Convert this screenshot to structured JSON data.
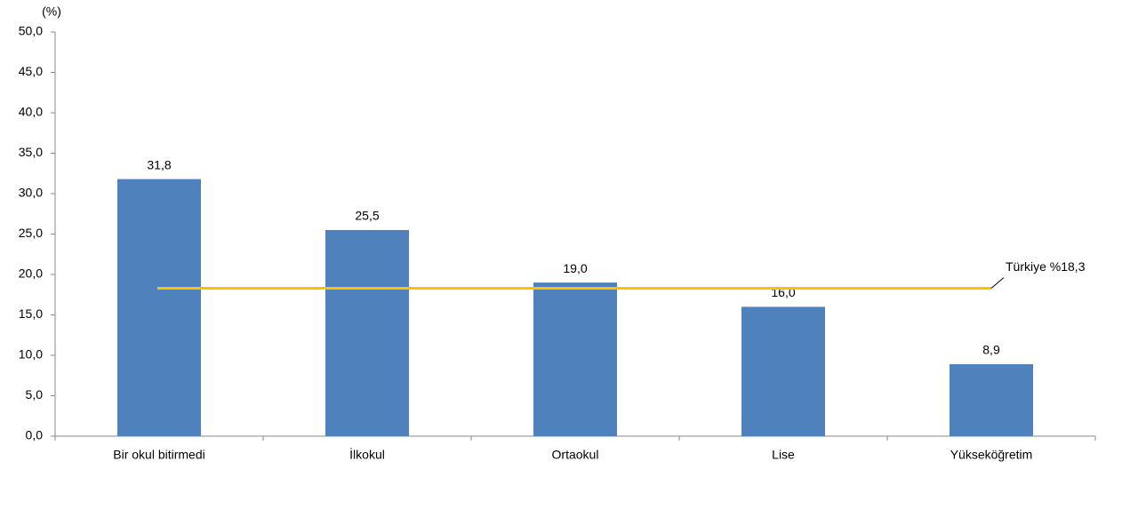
{
  "chart_data": {
    "type": "bar",
    "y_unit_label": "(%)",
    "categories": [
      "Bir okul bitirmedi",
      "İlkokul",
      "Ortaokul",
      "Lise",
      "Yükseköğretim"
    ],
    "values": [
      31.8,
      25.5,
      19.0,
      16.0,
      8.9
    ],
    "value_labels": [
      "31,8",
      "25,5",
      "19,0",
      "16,0",
      "8,9"
    ],
    "color": "#4f81bd",
    "ylim": [
      0,
      50
    ],
    "yticks": [
      {
        "value": 0,
        "label": "0,0"
      },
      {
        "value": 5,
        "label": "5,0"
      },
      {
        "value": 10,
        "label": "10,0"
      },
      {
        "value": 15,
        "label": "15,0"
      },
      {
        "value": 20,
        "label": "20,0"
      },
      {
        "value": 25,
        "label": "25,0"
      },
      {
        "value": 30,
        "label": "30,0"
      },
      {
        "value": 35,
        "label": "35,0"
      },
      {
        "value": 40,
        "label": "40,0"
      },
      {
        "value": 45,
        "label": "45,0"
      },
      {
        "value": 50,
        "label": "50,0"
      }
    ],
    "grid": false,
    "reference_line": {
      "value": 18.3,
      "label": "Türkiye %18,3",
      "color": "#ffc000"
    }
  }
}
